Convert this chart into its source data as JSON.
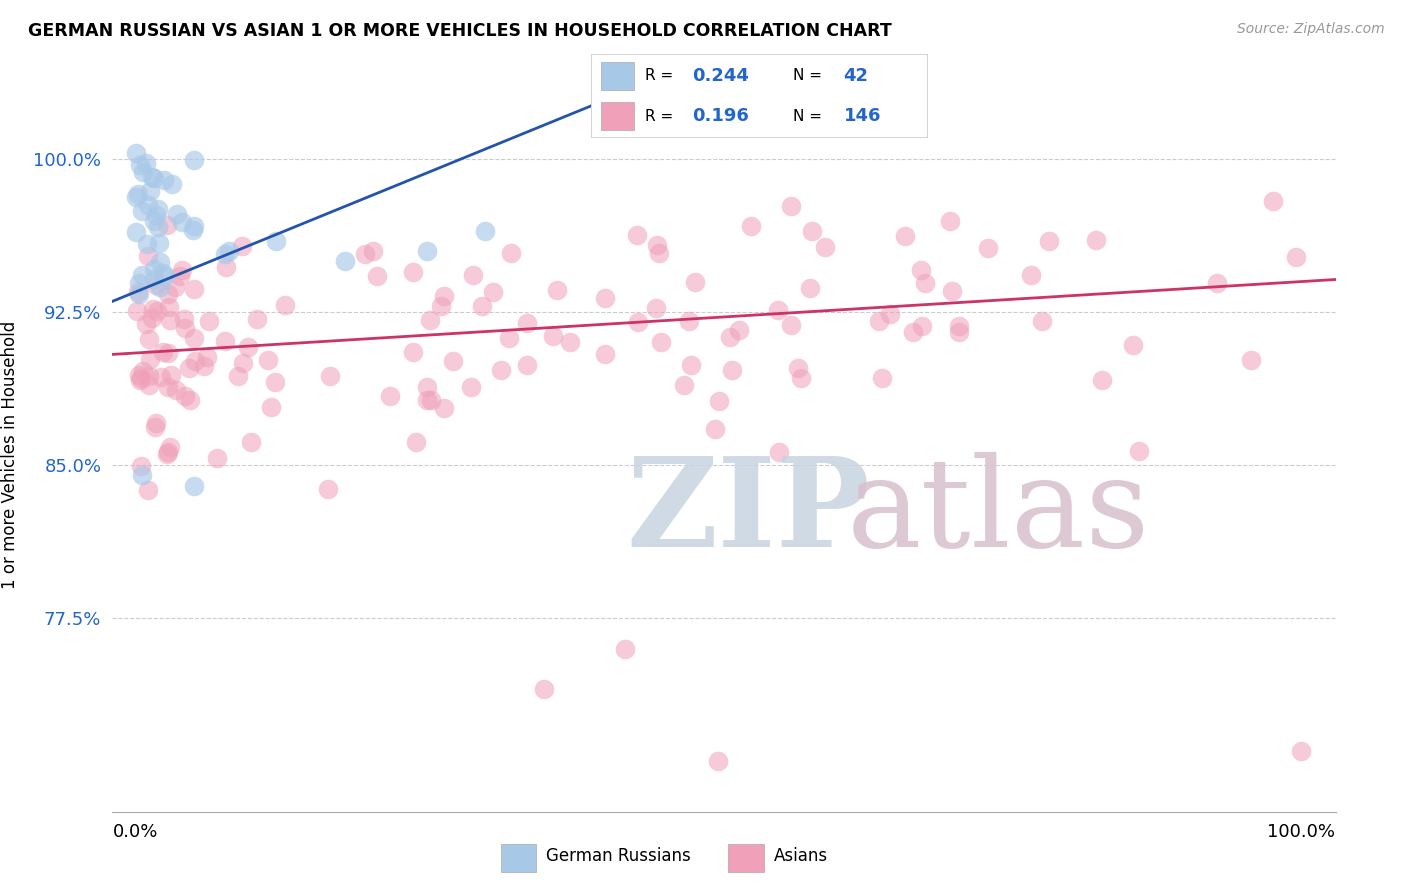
{
  "title": "GERMAN RUSSIAN VS ASIAN 1 OR MORE VEHICLES IN HOUSEHOLD CORRELATION CHART",
  "source": "Source: ZipAtlas.com",
  "ylabel": "1 or more Vehicles in Household",
  "xlim": [
    -2,
    103
  ],
  "ylim": [
    68,
    103
  ],
  "yticks": [
    77.5,
    85.0,
    92.5,
    100.0
  ],
  "ytick_labels": [
    "77.5%",
    "85.0%",
    "92.5%",
    "100.0%"
  ],
  "xtick_positions": [
    0,
    100
  ],
  "xtick_labels": [
    "0.0%",
    "100.0%"
  ],
  "legend_r_blue": "0.244",
  "legend_n_blue": "42",
  "legend_r_pink": "0.196",
  "legend_n_pink": "146",
  "blue_color": "#a8c8e8",
  "pink_color": "#f0a0b8",
  "blue_line_color": "#2255aa",
  "pink_line_color": "#cc3366",
  "watermark_zip_color": "#c8d4e0",
  "watermark_atlas_color": "#d8c0cc",
  "blue_line_x0": 0,
  "blue_line_y0": 93.5,
  "blue_line_x1": 30,
  "blue_line_y1": 100.5,
  "pink_line_x0": 0,
  "pink_line_y0": 90.5,
  "pink_line_x1": 100,
  "pink_line_y1": 94.0
}
